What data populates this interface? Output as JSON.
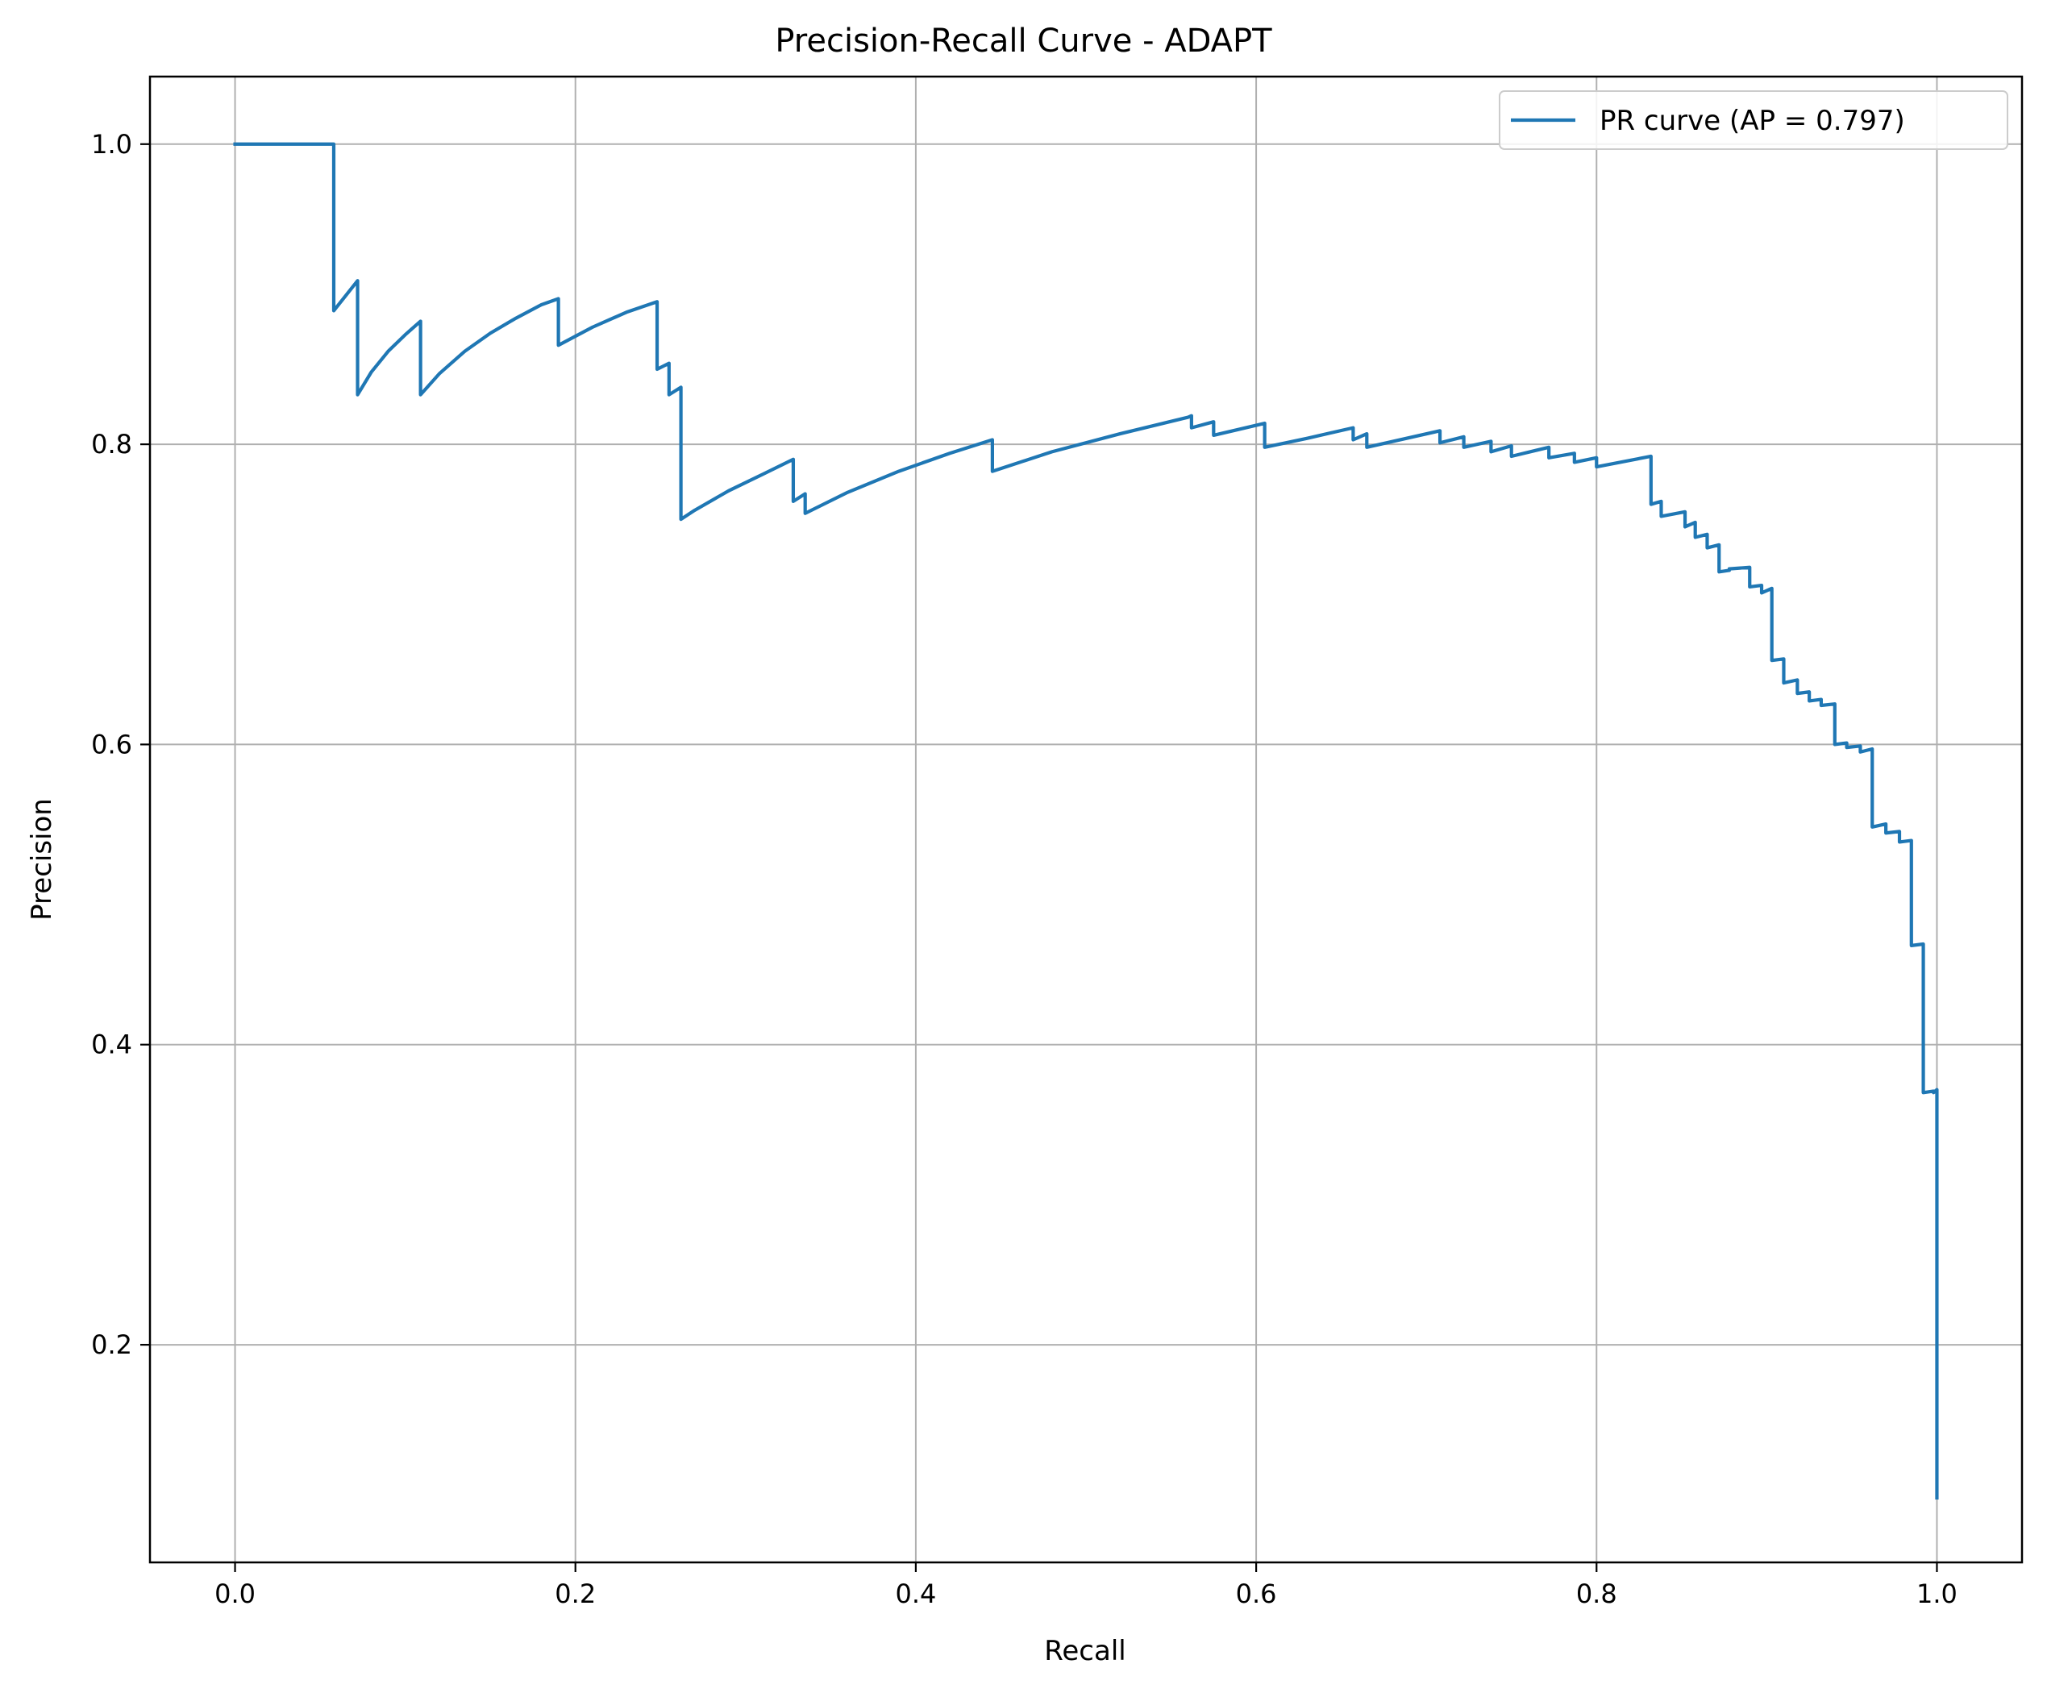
{
  "chart_data": {
    "type": "line",
    "title": "Precision-Recall Curve - ADAPT",
    "xlabel": "Recall",
    "ylabel": "Precision",
    "xlim": [
      -0.05,
      1.05
    ],
    "ylim": [
      0.055,
      1.045
    ],
    "xticks": [
      0.0,
      0.2,
      0.4,
      0.6,
      0.8,
      1.0
    ],
    "xtick_labels": [
      "0.0",
      "0.2",
      "0.4",
      "0.6",
      "0.8",
      "1.0"
    ],
    "yticks": [
      0.2,
      0.4,
      0.6,
      0.8,
      1.0
    ],
    "ytick_labels": [
      "0.2",
      "0.4",
      "0.6",
      "0.8",
      "1.0"
    ],
    "grid": true,
    "legend_position": "top-right",
    "series": [
      {
        "name": "PR curve (AP = 0.797)",
        "color": "#1f77b4",
        "x": [
          0.0,
          0.058,
          0.058,
          0.072,
          0.072,
          0.08,
          0.09,
          0.1,
          0.109,
          0.109,
          0.12,
          0.135,
          0.15,
          0.165,
          0.18,
          0.19,
          0.19,
          0.21,
          0.23,
          0.248,
          0.248,
          0.255,
          0.255,
          0.262,
          0.262,
          0.27,
          0.29,
          0.31,
          0.328,
          0.328,
          0.335,
          0.335,
          0.36,
          0.39,
          0.42,
          0.445,
          0.445,
          0.48,
          0.52,
          0.56,
          0.562,
          0.562,
          0.575,
          0.575,
          0.605,
          0.605,
          0.63,
          0.657,
          0.657,
          0.665,
          0.665,
          0.708,
          0.708,
          0.722,
          0.722,
          0.738,
          0.738,
          0.75,
          0.75,
          0.772,
          0.772,
          0.787,
          0.787,
          0.8,
          0.8,
          0.832,
          0.832,
          0.838,
          0.838,
          0.852,
          0.852,
          0.858,
          0.858,
          0.865,
          0.865,
          0.872,
          0.872,
          0.878,
          0.878,
          0.89,
          0.89,
          0.897,
          0.897,
          0.903,
          0.903,
          0.91,
          0.91,
          0.918,
          0.918,
          0.925,
          0.925,
          0.932,
          0.932,
          0.94,
          0.94,
          0.947,
          0.947,
          0.955,
          0.955,
          0.962,
          0.962,
          0.97,
          0.97,
          0.978,
          0.978,
          0.985,
          0.985,
          0.992,
          0.992,
          0.998,
          0.998,
          1.0,
          1.0
        ],
        "y": [
          1.0,
          1.0,
          0.889,
          0.909,
          0.833,
          0.848,
          0.862,
          0.873,
          0.882,
          0.833,
          0.847,
          0.862,
          0.874,
          0.884,
          0.893,
          0.897,
          0.866,
          0.878,
          0.888,
          0.895,
          0.85,
          0.854,
          0.833,
          0.838,
          0.75,
          0.756,
          0.769,
          0.78,
          0.79,
          0.762,
          0.767,
          0.754,
          0.768,
          0.782,
          0.794,
          0.803,
          0.782,
          0.795,
          0.807,
          0.818,
          0.819,
          0.811,
          0.815,
          0.806,
          0.814,
          0.798,
          0.804,
          0.811,
          0.803,
          0.807,
          0.798,
          0.809,
          0.801,
          0.805,
          0.798,
          0.802,
          0.795,
          0.799,
          0.792,
          0.798,
          0.791,
          0.794,
          0.788,
          0.791,
          0.785,
          0.792,
          0.76,
          0.762,
          0.752,
          0.755,
          0.745,
          0.748,
          0.738,
          0.74,
          0.731,
          0.733,
          0.715,
          0.716,
          0.717,
          0.718,
          0.705,
          0.706,
          0.701,
          0.704,
          0.656,
          0.657,
          0.641,
          0.643,
          0.634,
          0.635,
          0.629,
          0.63,
          0.626,
          0.627,
          0.6,
          0.601,
          0.598,
          0.599,
          0.595,
          0.597,
          0.545,
          0.547,
          0.541,
          0.542,
          0.535,
          0.536,
          0.466,
          0.467,
          0.368,
          0.369,
          0.368,
          0.37,
          0.098
        ]
      }
    ]
  }
}
